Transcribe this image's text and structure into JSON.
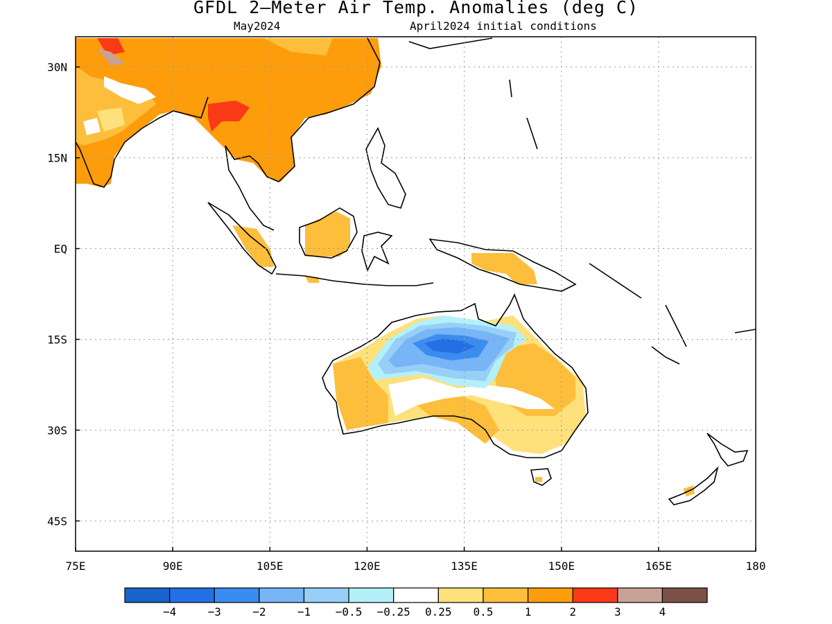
{
  "header": {
    "title": "GFDL 2—Meter Air Temp. Anomalies (deg C)",
    "subtitle_left": "May2024",
    "subtitle_right": "April2024 initial conditions"
  },
  "map": {
    "lon_range": [
      75,
      180
    ],
    "lat_range": [
      -50,
      35
    ],
    "lon_ticks": [
      {
        "v": 75,
        "label": "75E"
      },
      {
        "v": 90,
        "label": "90E"
      },
      {
        "v": 105,
        "label": "105E"
      },
      {
        "v": 120,
        "label": "120E"
      },
      {
        "v": 135,
        "label": "135E"
      },
      {
        "v": 150,
        "label": "150E"
      },
      {
        "v": 165,
        "label": "165E"
      },
      {
        "v": 180,
        "label": "180"
      }
    ],
    "lat_ticks": [
      {
        "v": 30,
        "label": "30N"
      },
      {
        "v": 15,
        "label": "15N"
      },
      {
        "v": 0,
        "label": "EQ"
      },
      {
        "v": -15,
        "label": "15S"
      },
      {
        "v": -30,
        "label": "30S"
      },
      {
        "v": -45,
        "label": "45S"
      }
    ],
    "grid": true
  },
  "colorbar": {
    "colors": [
      "#1764cd",
      "#2270e4",
      "#3b8cf0",
      "#77b5f6",
      "#98cff9",
      "#b4f0fa",
      "#ffffff",
      "#fee17b",
      "#fdbe3c",
      "#fd9d0b",
      "#fa3a16",
      "#c9a297",
      "#7c5248"
    ],
    "labels": [
      "−4",
      "−3",
      "−2",
      "−1",
      "−0.5",
      "−0.25",
      "0.25",
      "0.5",
      "1",
      "2",
      "3",
      "4"
    ]
  }
}
